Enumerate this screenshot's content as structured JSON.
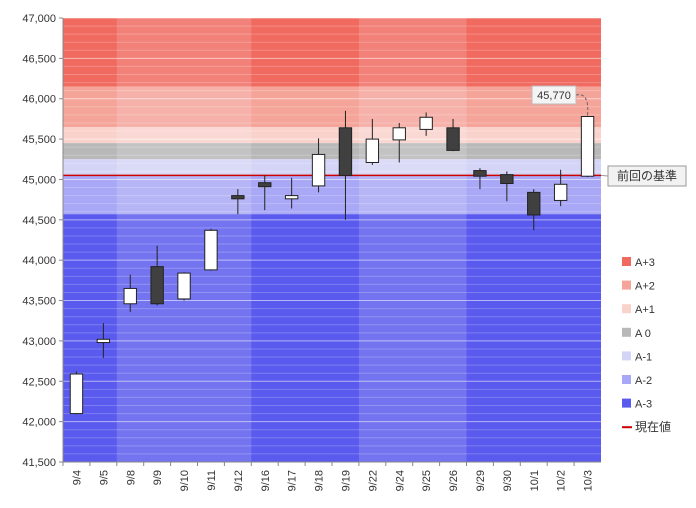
{
  "chart_data": {
    "type": "candlestick",
    "ylim": [
      41500,
      47000
    ],
    "ytick_step": 500,
    "yticks": [
      "41,500",
      "42,000",
      "42,500",
      "43,000",
      "43,500",
      "44,000",
      "44,500",
      "45,000",
      "45,500",
      "46,000",
      "46,500",
      "47,000"
    ],
    "categories": [
      "9/4",
      "9/5",
      "9/8",
      "9/9",
      "9/10",
      "9/11",
      "9/12",
      "9/16",
      "9/17",
      "9/18",
      "9/19",
      "9/22",
      "9/24",
      "9/25",
      "9/26",
      "9/29",
      "9/30",
      "10/1",
      "10/2",
      "10/3"
    ],
    "candles": [
      {
        "date": "9/4",
        "open": 42100,
        "close": 42590,
        "high": 42620,
        "low": 42090
      },
      {
        "date": "9/5",
        "open": 42980,
        "close": 43020,
        "high": 43220,
        "low": 42790
      },
      {
        "date": "9/8",
        "open": 43460,
        "close": 43650,
        "high": 43820,
        "low": 43360
      },
      {
        "date": "9/9",
        "open": 43920,
        "close": 43460,
        "high": 44180,
        "low": 43440
      },
      {
        "date": "9/10",
        "open": 43520,
        "close": 43840,
        "high": 43850,
        "low": 43500
      },
      {
        "date": "9/11",
        "open": 43880,
        "close": 44370,
        "high": 44390,
        "low": 43870
      },
      {
        "date": "9/12",
        "open": 44800,
        "close": 44760,
        "high": 44880,
        "low": 44570
      },
      {
        "date": "9/16",
        "open": 44960,
        "close": 44910,
        "high": 45050,
        "low": 44620
      },
      {
        "date": "9/17",
        "open": 44760,
        "close": 44800,
        "high": 45020,
        "low": 44640
      },
      {
        "date": "9/18",
        "open": 44920,
        "close": 45310,
        "high": 45510,
        "low": 44840
      },
      {
        "date": "9/19",
        "open": 45640,
        "close": 45050,
        "high": 45850,
        "low": 44500
      },
      {
        "date": "9/22",
        "open": 45210,
        "close": 45500,
        "high": 45750,
        "low": 45180
      },
      {
        "date": "9/24",
        "open": 45490,
        "close": 45640,
        "high": 45700,
        "low": 45210
      },
      {
        "date": "9/25",
        "open": 45620,
        "close": 45770,
        "high": 45830,
        "low": 45540
      },
      {
        "date": "9/26",
        "open": 45640,
        "close": 45360,
        "high": 45750,
        "low": 45350
      },
      {
        "date": "9/29",
        "open": 45110,
        "close": 45040,
        "high": 45140,
        "low": 44880
      },
      {
        "date": "9/30",
        "open": 45060,
        "close": 44950,
        "high": 45100,
        "low": 44730
      },
      {
        "date": "10/1",
        "open": 44840,
        "close": 44560,
        "high": 44880,
        "low": 44370
      },
      {
        "date": "10/2",
        "open": 44740,
        "close": 44940,
        "high": 45120,
        "low": 44670
      },
      {
        "date": "10/3",
        "open": 45040,
        "close": 45780,
        "high": 45790,
        "low": 45030
      }
    ],
    "zones": [
      {
        "label": "A+3",
        "from": 46150,
        "to": 47000,
        "color": "#f06a60"
      },
      {
        "label": "A+2",
        "from": 45650,
        "to": 46150,
        "color": "#f5a49a"
      },
      {
        "label": "A+1",
        "from": 45450,
        "to": 45650,
        "color": "#fad2cc"
      },
      {
        "label": "A 0",
        "from": 45250,
        "to": 45450,
        "color": "#b8b8b8"
      },
      {
        "label": "A-1",
        "from": 45050,
        "to": 45250,
        "color": "#d4d4f6"
      },
      {
        "label": "A-2",
        "from": 44570,
        "to": 45050,
        "color": "#a8a8f6"
      },
      {
        "label": "A-3",
        "from": 41500,
        "to": 44570,
        "color": "#5a5aee"
      }
    ],
    "current_value": {
      "label": "現在値",
      "value": 45050,
      "color": "#cc0000"
    },
    "previous_reference_label": "前回の基準",
    "callout": {
      "text": "45,770",
      "value": 45770
    },
    "legend": [
      {
        "label": "A+3",
        "color": "#f06a60"
      },
      {
        "label": "A+2",
        "color": "#f5a49a"
      },
      {
        "label": "A+1",
        "color": "#fad2cc"
      },
      {
        "label": "A 0",
        "color": "#b8b8b8"
      },
      {
        "label": "A-1",
        "color": "#d4d4f6"
      },
      {
        "label": "A-2",
        "color": "#a8a8f6"
      },
      {
        "label": "A-3",
        "color": "#5a5aee"
      },
      {
        "label": "現在値",
        "color": "#cc0000",
        "kind": "line"
      }
    ],
    "legend_position": "right",
    "colors": {
      "up": "#ffffff",
      "down": "#404040",
      "outline": "#222222",
      "grid": "#ffffff"
    }
  }
}
